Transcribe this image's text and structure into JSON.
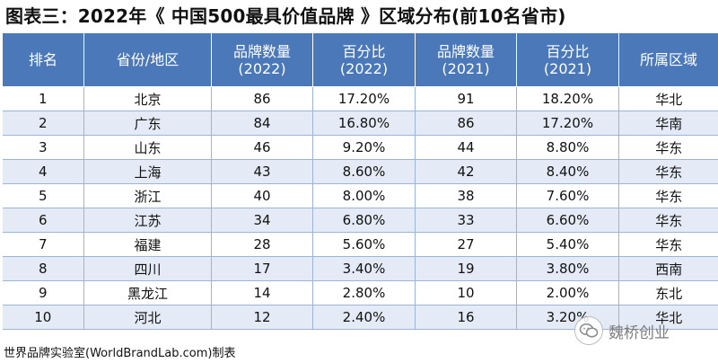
{
  "title": "图表三：2022年《 中国500最具价值品牌 》区域分布(前10名省市)",
  "headers": {
    "rank": "排名",
    "province": "省份/地区",
    "count2022": [
      "品牌数量",
      "(2022)"
    ],
    "pct2022": [
      "百分比",
      "(2022)"
    ],
    "count2021": [
      "品牌数量",
      "(2021)"
    ],
    "pct2021": [
      "百分比",
      "(2021)"
    ],
    "region": "所属区域"
  },
  "rows": [
    {
      "rank": "1",
      "province": "北京",
      "count2022": "86",
      "pct2022": "17.20%",
      "count2021": "91",
      "pct2021": "18.20%",
      "region": "华北"
    },
    {
      "rank": "2",
      "province": "广东",
      "count2022": "84",
      "pct2022": "16.80%",
      "count2021": "86",
      "pct2021": "17.20%",
      "region": "华南"
    },
    {
      "rank": "3",
      "province": "山东",
      "count2022": "46",
      "pct2022": "9.20%",
      "count2021": "44",
      "pct2021": "8.80%",
      "region": "华东"
    },
    {
      "rank": "4",
      "province": "上海",
      "count2022": "43",
      "pct2022": "8.60%",
      "count2021": "42",
      "pct2021": "8.40%",
      "region": "华东"
    },
    {
      "rank": "5",
      "province": "浙江",
      "count2022": "40",
      "pct2022": "8.00%",
      "count2021": "38",
      "pct2021": "7.60%",
      "region": "华东"
    },
    {
      "rank": "6",
      "province": "江苏",
      "count2022": "34",
      "pct2022": "6.80%",
      "count2021": "33",
      "pct2021": "6.60%",
      "region": "华东"
    },
    {
      "rank": "7",
      "province": "福建",
      "count2022": "28",
      "pct2022": "5.60%",
      "count2021": "27",
      "pct2021": "5.40%",
      "region": "华东"
    },
    {
      "rank": "8",
      "province": "四川",
      "count2022": "17",
      "pct2022": "3.40%",
      "count2021": "19",
      "pct2021": "3.80%",
      "region": "西南"
    },
    {
      "rank": "9",
      "province": "黑龙江",
      "count2022": "14",
      "pct2022": "2.80%",
      "count2021": "10",
      "pct2021": "2.00%",
      "region": "东北"
    },
    {
      "rank": "10",
      "province": "河北",
      "count2022": "12",
      "pct2022": "2.40%",
      "count2021": "16",
      "pct2021": "3.20%",
      "region": "华北"
    }
  ],
  "footer": "世界品牌实验室(WorldBrandLab.com)制表",
  "watermark": {
    "icon": "wechat-logo-icon",
    "text": "魏桥创业"
  },
  "colors": {
    "header_bg": "#4a78b8",
    "row_alt": "#e4ebf6",
    "border": "#9cb4d6"
  }
}
